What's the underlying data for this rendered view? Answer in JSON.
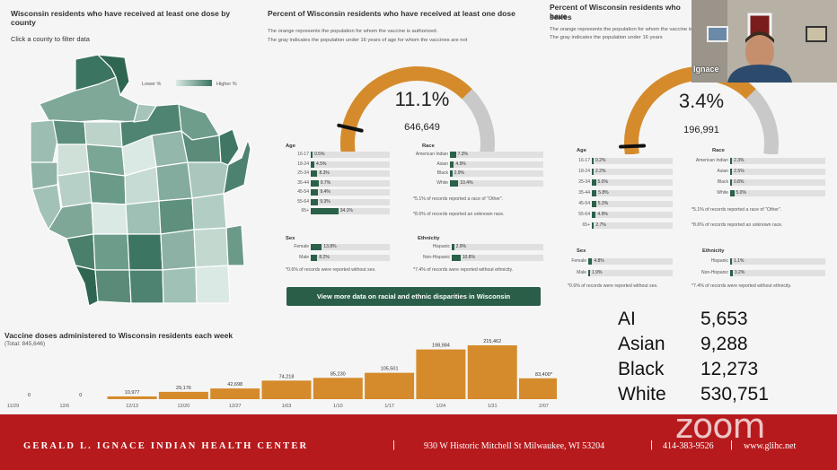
{
  "map_panel": {
    "title": "Wisconsin residents who have received at least one dose by county",
    "subtitle": "Click a county to filter data",
    "legend_low": "Lower %",
    "legend_high": "Higher %"
  },
  "panel_all": {
    "title": "Percent of Wisconsin residents who have received at least one dose",
    "sub_orange_word": "orange",
    "sub_line1": "The orange represents the population for whom the vaccine is authorized.",
    "sub_line2": "The gray indicates the population under 16 years of age for whom the vaccines are not",
    "gauge_percent": "11.1%",
    "gauge_count": "646,649",
    "gauge_fraction": 0.111,
    "age_head": "Age",
    "race_head": "Race",
    "sex_head": "Sex",
    "eth_head": "Ethnicity",
    "age": [
      {
        "label": "16-17",
        "value": "0.5%",
        "frac": 0.005
      },
      {
        "label": "18-24",
        "value": "4.5%",
        "frac": 0.045
      },
      {
        "label": "25-34",
        "value": "8.3%",
        "frac": 0.083
      },
      {
        "label": "35-44",
        "value": "9.7%",
        "frac": 0.097
      },
      {
        "label": "45-54",
        "value": "9.4%",
        "frac": 0.094
      },
      {
        "label": "55-64",
        "value": "9.3%",
        "frac": 0.093
      },
      {
        "label": "65+",
        "value": "34.1%",
        "frac": 0.341
      }
    ],
    "race": [
      {
        "label": "American Indian",
        "value": "7.3%",
        "frac": 0.073
      },
      {
        "label": "Asian",
        "value": "4.9%",
        "frac": 0.049
      },
      {
        "label": "Black",
        "value": "2.9%",
        "frac": 0.029
      },
      {
        "label": "White",
        "value": "10.4%",
        "frac": 0.104
      }
    ],
    "race_note1": "*5.1% of records reported a race of \"Other\".",
    "race_note2": "*8.6% of records reported an unknown race.",
    "sex": [
      {
        "label": "Female",
        "value": "13.8%",
        "frac": 0.138
      },
      {
        "label": "Male",
        "value": "8.2%",
        "frac": 0.082
      }
    ],
    "sex_note": "*0.6% of records were reported without sex.",
    "eth": [
      {
        "label": "Hispanic",
        "value": "2.9%",
        "frac": 0.029
      },
      {
        "label": "Non-Hispanic",
        "value": "10.8%",
        "frac": 0.108
      }
    ],
    "eth_note": "*7.4% of records were reported without ethnicity.",
    "cta": "View more data on racial and ethnic disparities in Wisconsin"
  },
  "panel_series": {
    "title_line1": "Percent of Wisconsin residents who have",
    "title_line2": "series",
    "sub_line1": "The orange represents the population for whom the vaccine is authorized.",
    "sub_line2": "The gray indicates the population under 16 years",
    "gauge_percent": "3.4%",
    "gauge_count": "196,991",
    "gauge_fraction": 0.034,
    "age": [
      {
        "label": "16-17",
        "value": "0.2%",
        "frac": 0.002
      },
      {
        "label": "18-24",
        "value": "2.2%",
        "frac": 0.022
      },
      {
        "label": "25-34",
        "value": "5.0%",
        "frac": 0.05
      },
      {
        "label": "35-44",
        "value": "5.8%",
        "frac": 0.058
      },
      {
        "label": "45-54",
        "value": "5.3%",
        "frac": 0.053
      },
      {
        "label": "55-64",
        "value": "4.9%",
        "frac": 0.049
      },
      {
        "label": "65+",
        "value": "2.7%",
        "frac": 0.027
      }
    ],
    "race": [
      {
        "label": "American Indian",
        "value": "2.3%",
        "frac": 0.023
      },
      {
        "label": "Asian",
        "value": "2.5%",
        "frac": 0.025
      },
      {
        "label": "Black",
        "value": "0.8%",
        "frac": 0.008
      },
      {
        "label": "White",
        "value": "5.0%",
        "frac": 0.05
      }
    ],
    "race_note1": "*5.1% of records reported a race of \"Other\".",
    "race_note2": "*8.6% of records reported an unknown race.",
    "sex": [
      {
        "label": "Female",
        "value": "4.8%",
        "frac": 0.048
      },
      {
        "label": "Male",
        "value": "1.9%",
        "frac": 0.019
      }
    ],
    "sex_note": "*0.6% of records were reported without sex.",
    "eth": [
      {
        "label": "Hispanic",
        "value": "1.1%",
        "frac": 0.011
      },
      {
        "label": "Non-Hispanic",
        "value": "3.2%",
        "frac": 0.032
      }
    ],
    "eth_note": "*7.4% of records were reported without ethnicity."
  },
  "weekly": {
    "title": "Vaccine doses administered to Wisconsin residents each week",
    "total": "(Total: 845,646)"
  },
  "chart_data": {
    "type": "bar",
    "title": "Vaccine doses administered to Wisconsin residents each week",
    "categories": [
      "11/29",
      "12/6",
      "12/13",
      "12/20",
      "12/27",
      "1/03",
      "1/10",
      "1/17",
      "1/24",
      "1/31",
      "2/07"
    ],
    "values": [
      0,
      0,
      10977,
      29176,
      42698,
      74218,
      85230,
      105501,
      198984,
      215462,
      83400
    ],
    "value_labels": [
      "0",
      "0",
      "10,977",
      "29,176",
      "42,698",
      "74,218",
      "85,230",
      "105,501",
      "198,984",
      "215,462",
      "83,400*"
    ],
    "ylim": [
      0,
      215462
    ],
    "bar_color": "#d58b2c",
    "grid": false
  },
  "counts": [
    {
      "label": "AI",
      "value": "5,653"
    },
    {
      "label": "Asian",
      "value": "9,288"
    },
    {
      "label": "Black",
      "value": "12,273"
    },
    {
      "label": "White",
      "value": "530,751"
    }
  ],
  "webcam": {
    "name": "Ignace"
  },
  "footer": {
    "org": "GERALD L. IGNACE INDIAN HEALTH CENTER",
    "sep": "|",
    "address": "930 W Historic Mitchell St  Milwaukee, WI 53204",
    "phone": "414-383-9526",
    "web": "www.glihc.net"
  },
  "zoom_logo": "zoom",
  "colors": {
    "orange": "#d58b2c",
    "gauge_gray": "#c9c9c9",
    "dark_green": "#2b6049",
    "footer_red": "#b71a1d"
  }
}
